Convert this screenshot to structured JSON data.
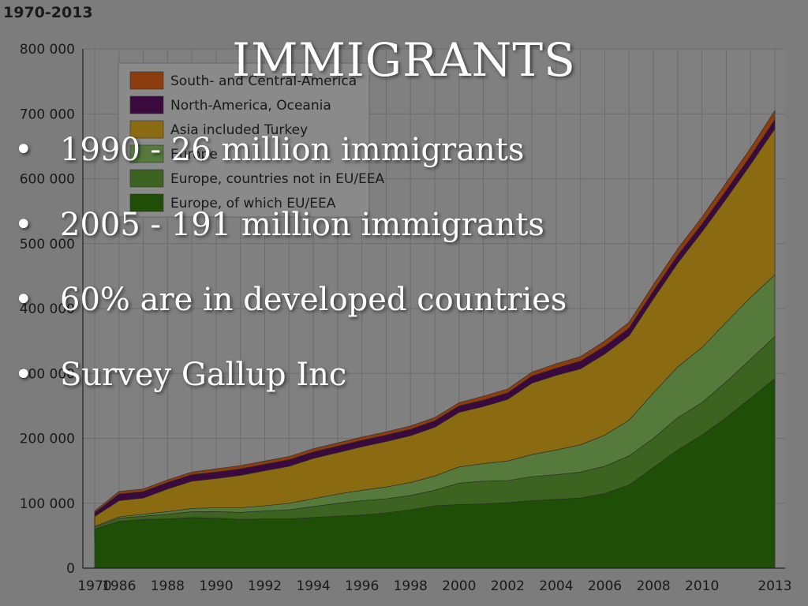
{
  "slide": {
    "title": "IMMIGRANTS",
    "bullets": [
      "1990 - 26 million immigrants",
      "2005 - 191 million immigrants",
      "60% are in developed countries",
      "Survey Gallup Inc"
    ],
    "bullet_glyph": "•"
  },
  "chart_data": {
    "type": "area",
    "title": "1970-2013",
    "x_tick_labels": [
      "1970",
      "1986",
      "1988",
      "1990",
      "1992",
      "1994",
      "1996",
      "1998",
      "2000",
      "2002",
      "2004",
      "2006",
      "2008",
      "2010",
      "2013"
    ],
    "y_tick_labels": [
      "0",
      "100 000",
      "200 000",
      "300 000",
      "400 000",
      "500 000",
      "600 000",
      "700 000",
      "800 000"
    ],
    "ylim": [
      0,
      800000
    ],
    "grid": true,
    "legend_position": "top-left",
    "x": [
      "1970",
      "1985",
      "1986",
      "1987",
      "1988",
      "1989",
      "1990",
      "1991",
      "1992",
      "1993",
      "1994",
      "1995",
      "1996",
      "1997",
      "1998",
      "1999",
      "2000",
      "2001",
      "2002",
      "2003",
      "2004",
      "2005",
      "2006",
      "2007",
      "2008",
      "2009",
      "2010",
      "2011",
      "2012",
      "2013"
    ],
    "series": [
      {
        "name": "Europe, of which EU/EEA",
        "color": "#1f4f06",
        "values": [
          45000,
          60000,
          72000,
          75000,
          76000,
          78000,
          77000,
          75000,
          76000,
          76000,
          78000,
          80000,
          82000,
          85000,
          90000,
          96000,
          98000,
          99000,
          101000,
          104000,
          106000,
          108000,
          115000,
          128000,
          155000,
          182000,
          205000,
          232000,
          262000,
          292000
        ]
      },
      {
        "name": "Europe, countries not in EU/EEA",
        "color": "#3d6321",
        "values": [
          2000,
          3000,
          5000,
          5000,
          7000,
          9000,
          10000,
          11000,
          12000,
          14000,
          17000,
          20000,
          22000,
          22000,
          22000,
          24000,
          33000,
          35000,
          34000,
          37000,
          38000,
          40000,
          42000,
          45000,
          45000,
          50000,
          50000,
          55000,
          60000,
          65000
        ]
      },
      {
        "name": "Europe",
        "color": "#557a3c",
        "values": [
          1000,
          1500,
          2000,
          3000,
          4000,
          5000,
          6000,
          7000,
          8000,
          10000,
          12000,
          14000,
          16000,
          18000,
          20000,
          22000,
          25000,
          27000,
          30000,
          34000,
          38000,
          42000,
          48000,
          55000,
          70000,
          78000,
          85000,
          92000,
          95000,
          95000
        ]
      },
      {
        "name": "Asia included Turkey",
        "color": "#8a6b11",
        "values": [
          4000,
          15000,
          25000,
          25000,
          35000,
          42000,
          45000,
          50000,
          54000,
          57000,
          62000,
          64000,
          67000,
          70000,
          72000,
          75000,
          84000,
          88000,
          95000,
          110000,
          115000,
          117000,
          125000,
          130000,
          145000,
          160000,
          178000,
          190000,
          205000,
          225000
        ]
      },
      {
        "name": "North-America, Oceania",
        "color": "#3a0a3e",
        "values": [
          3000,
          6000,
          10000,
          10000,
          10000,
          10000,
          10000,
          10000,
          10000,
          10000,
          10000,
          10000,
          10000,
          10000,
          10000,
          10000,
          10000,
          10000,
          10000,
          11000,
          11000,
          12000,
          12000,
          12000,
          12000,
          12000,
          12000,
          13000,
          13000,
          14000
        ]
      },
      {
        "name": "South- and Central-America",
        "color": "#8b3d0f",
        "values": [
          1500,
          2500,
          4000,
          4000,
          4000,
          4000,
          5000,
          5000,
          5000,
          5000,
          5000,
          5000,
          5000,
          5000,
          5000,
          5000,
          5000,
          6000,
          6000,
          6000,
          7000,
          7000,
          8000,
          9000,
          10000,
          10000,
          11000,
          12000,
          12000,
          14000
        ]
      }
    ]
  }
}
